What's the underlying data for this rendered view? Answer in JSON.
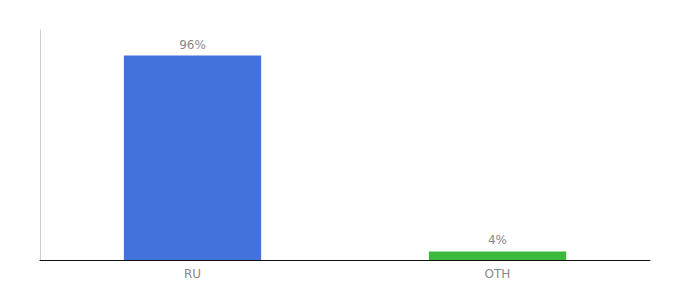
{
  "chart_data": {
    "type": "bar",
    "categories": [
      "RU",
      "OTH"
    ],
    "values": [
      96,
      4
    ],
    "value_labels": [
      "96%",
      "4%"
    ],
    "colors": [
      "#4472db",
      "#3dba3d"
    ],
    "data_labels": true,
    "ylim": [
      0,
      108
    ],
    "grid": false,
    "tick_labels": "x"
  }
}
